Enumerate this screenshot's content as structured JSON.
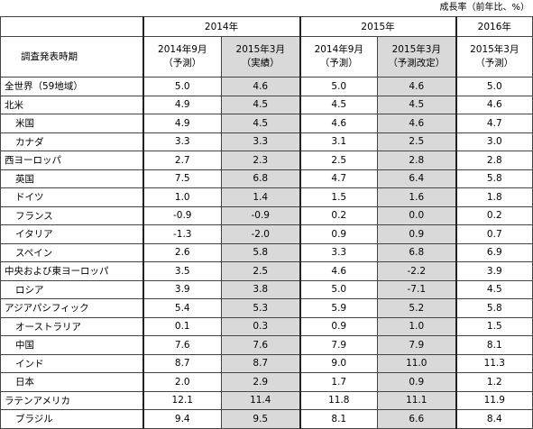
{
  "note": "成長率（前年比、%）",
  "table": {
    "years": [
      "2014年",
      "2015年",
      "2016年"
    ],
    "label_header": "調査発表時期",
    "columns": [
      {
        "date": "2014年9月",
        "kind": "（予測）"
      },
      {
        "date": "2015年3月",
        "kind": "（実績）"
      },
      {
        "date": "2014年9月",
        "kind": "（予測）"
      },
      {
        "date": "2015年3月",
        "kind": "（予測改定）"
      },
      {
        "date": "2015年3月",
        "kind": "（予測）"
      }
    ],
    "regions": [
      {
        "name": "全世界（59地域）",
        "values": [
          "5.0",
          "4.6",
          "5.0",
          "4.6",
          "5.0"
        ],
        "countries": []
      },
      {
        "name": "北米",
        "values": [
          "4.9",
          "4.5",
          "4.5",
          "4.5",
          "4.6"
        ],
        "countries": [
          {
            "name": "米国",
            "values": [
              "4.9",
              "4.5",
              "4.6",
              "4.6",
              "4.7"
            ]
          },
          {
            "name": "カナダ",
            "values": [
              "3.3",
              "3.3",
              "3.1",
              "2.5",
              "3.0"
            ]
          }
        ]
      },
      {
        "name": "西ヨーロッパ",
        "values": [
          "2.7",
          "2.3",
          "2.5",
          "2.8",
          "2.8"
        ],
        "countries": [
          {
            "name": "英国",
            "values": [
              "7.5",
              "6.8",
              "4.7",
              "6.4",
              "5.8"
            ]
          },
          {
            "name": "ドイツ",
            "values": [
              "1.0",
              "1.4",
              "1.5",
              "1.6",
              "1.8"
            ]
          },
          {
            "name": "フランス",
            "values": [
              "-0.9",
              "-0.9",
              "0.2",
              "0.0",
              "0.2"
            ]
          },
          {
            "name": "イタリア",
            "values": [
              "-1.3",
              "-2.0",
              "0.9",
              "0.9",
              "0.7"
            ]
          },
          {
            "name": "スペイン",
            "values": [
              "2.6",
              "5.8",
              "3.3",
              "6.8",
              "6.9"
            ]
          }
        ]
      },
      {
        "name": "中央および東ヨーロッパ",
        "values": [
          "3.5",
          "2.5",
          "4.6",
          "-2.2",
          "3.9"
        ],
        "countries": [
          {
            "name": "ロシア",
            "values": [
              "3.9",
              "3.8",
              "5.0",
              "-7.1",
              "4.5"
            ]
          }
        ]
      },
      {
        "name": "アジアパシフィック",
        "values": [
          "5.4",
          "5.3",
          "5.9",
          "5.2",
          "5.8"
        ],
        "countries": [
          {
            "name": "オーストラリア",
            "values": [
              "0.1",
              "0.3",
              "0.9",
              "1.0",
              "1.5"
            ]
          },
          {
            "name": "中国",
            "values": [
              "7.6",
              "7.6",
              "7.9",
              "7.9",
              "8.1"
            ]
          },
          {
            "name": "インド",
            "values": [
              "8.7",
              "8.7",
              "9.0",
              "11.0",
              "11.3"
            ]
          },
          {
            "name": "日本",
            "values": [
              "2.0",
              "2.9",
              "1.7",
              "0.9",
              "1.2"
            ]
          }
        ]
      },
      {
        "name": "ラテンアメリカ",
        "values": [
          "12.1",
          "11.4",
          "11.8",
          "11.1",
          "11.9"
        ],
        "countries": [
          {
            "name": "ブラジル",
            "values": [
              "9.4",
              "9.5",
              "8.1",
              "6.6",
              "8.4"
            ]
          }
        ]
      }
    ]
  }
}
